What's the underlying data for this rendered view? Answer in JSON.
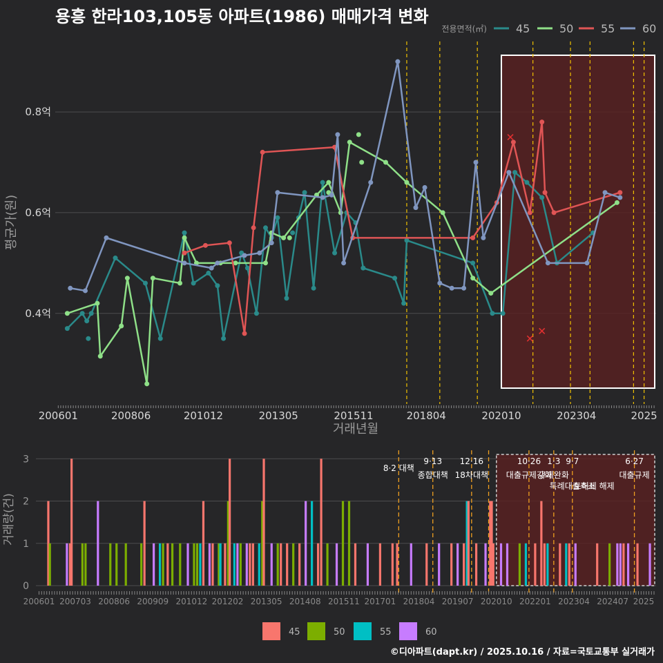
{
  "title": "용흥 한라103,105동 아파트(1986) 매매가격 변화",
  "credit": "©디아파트(dapt.kr) / 2025.10.16 / 자료=국토교통부 실거래가",
  "colors": {
    "bg": "#262628",
    "grid": "#4c4c4e",
    "policy": "#f2c200",
    "highlight": "#5a2020"
  },
  "chart_data": [
    {
      "type": "line",
      "title": "용흥 한라103,105동 아파트(1986) 매매가격 변화",
      "xlabel": "거래년월",
      "ylabel": "평균가(원)",
      "yticks": [
        {
          "v": 0.4,
          "label": "0.4억"
        },
        {
          "v": 0.6,
          "label": "0.6억"
        },
        {
          "v": 0.8,
          "label": "0.8억"
        }
      ],
      "ylim": [
        0.22,
        0.94
      ],
      "xlim": [
        2005.9,
        2025.9
      ],
      "xticks": [
        {
          "v": 2006.0,
          "label": "200601"
        },
        {
          "v": 2008.42,
          "label": "200806"
        },
        {
          "v": 2010.83,
          "label": "201012"
        },
        {
          "v": 2013.33,
          "label": "201305"
        },
        {
          "v": 2015.83,
          "label": "201511"
        },
        {
          "v": 2018.25,
          "label": "201804"
        },
        {
          "v": 2020.75,
          "label": "202010"
        },
        {
          "v": 2023.25,
          "label": "202304"
        },
        {
          "v": 2025.5,
          "label": "2025"
        }
      ],
      "legend_title": "전용면적(㎡)",
      "policy_lines": [
        2017.6,
        2018.7,
        2019.95,
        2021.8,
        2023.05,
        2023.7,
        2025.15,
        2025.5
      ],
      "highlight_range": [
        2020.75,
        2025.9
      ],
      "series": [
        {
          "name": "45",
          "color": "#2a8a8a",
          "points": [
            [
              2006.3,
              0.37
            ],
            [
              2006.8,
              0.4
            ],
            [
              2006.95,
              0.385
            ],
            [
              2007.1,
              0.4
            ],
            [
              2007.9,
              0.51
            ],
            [
              2008.9,
              0.46
            ],
            [
              2009.4,
              0.35
            ],
            [
              2010.2,
              0.56
            ],
            [
              2010.5,
              0.46
            ],
            [
              2011.0,
              0.48
            ],
            [
              2011.3,
              0.455
            ],
            [
              2011.5,
              0.35
            ],
            [
              2012.1,
              0.52
            ],
            [
              2012.3,
              0.49
            ],
            [
              2012.6,
              0.4
            ],
            [
              2012.9,
              0.57
            ],
            [
              2013.1,
              0.55
            ],
            [
              2013.3,
              0.59
            ],
            [
              2013.6,
              0.43
            ],
            [
              2014.0,
              0.59
            ],
            [
              2014.2,
              0.64
            ],
            [
              2014.5,
              0.45
            ],
            [
              2014.8,
              0.66
            ],
            [
              2015.2,
              0.52
            ],
            [
              2015.6,
              0.6
            ],
            [
              2015.9,
              0.58
            ],
            [
              2016.15,
              0.49
            ],
            [
              2017.2,
              0.47
            ],
            [
              2017.5,
              0.42
            ],
            [
              2017.6,
              0.545
            ],
            [
              2019.8,
              0.5
            ],
            [
              2020.45,
              0.4
            ],
            [
              2020.8,
              0.4
            ],
            [
              2021.2,
              0.68
            ],
            [
              2021.6,
              0.66
            ],
            [
              2022.1,
              0.63
            ],
            [
              2022.6,
              0.5
            ],
            [
              2023.8,
              0.56
            ]
          ],
          "extra": [
            [
              2007.0,
              0.35
            ],
            [
              2013.8,
              0.56
            ]
          ]
        },
        {
          "name": "50",
          "color": "#8fe088",
          "points": [
            [
              2006.3,
              0.4
            ],
            [
              2007.3,
              0.42
            ],
            [
              2007.4,
              0.315
            ],
            [
              2008.1,
              0.375
            ],
            [
              2008.3,
              0.47
            ],
            [
              2008.95,
              0.26
            ],
            [
              2009.15,
              0.47
            ],
            [
              2010.05,
              0.46
            ],
            [
              2010.2,
              0.55
            ],
            [
              2010.6,
              0.5
            ],
            [
              2011.4,
              0.5
            ],
            [
              2011.9,
              0.5
            ],
            [
              2012.9,
              0.5
            ],
            [
              2013.1,
              0.56
            ],
            [
              2013.5,
              0.55
            ],
            [
              2014.6,
              0.635
            ],
            [
              2015.0,
              0.66
            ],
            [
              2015.4,
              0.6
            ],
            [
              2015.7,
              0.74
            ],
            [
              2016.9,
              0.7
            ],
            [
              2017.6,
              0.66
            ],
            [
              2018.8,
              0.6
            ],
            [
              2019.8,
              0.47
            ],
            [
              2020.4,
              0.44
            ],
            [
              2024.6,
              0.62
            ]
          ],
          "extra": [
            [
              2016.0,
              0.755
            ],
            [
              2016.1,
              0.7
            ],
            [
              2015.0,
              0.64
            ],
            [
              2013.7,
              0.55
            ]
          ]
        },
        {
          "name": "55",
          "color": "#e05555",
          "points": [
            [
              2010.2,
              0.52
            ],
            [
              2010.9,
              0.535
            ],
            [
              2011.7,
              0.54
            ],
            [
              2012.2,
              0.36
            ],
            [
              2012.5,
              0.57
            ],
            [
              2012.8,
              0.72
            ],
            [
              2015.2,
              0.73
            ],
            [
              2015.8,
              0.55
            ],
            [
              2019.8,
              0.55
            ],
            [
              2020.6,
              0.62
            ],
            [
              2021.15,
              0.74
            ],
            [
              2021.7,
              0.6
            ],
            [
              2022.1,
              0.78
            ],
            [
              2022.2,
              0.64
            ],
            [
              2022.5,
              0.6
            ],
            [
              2024.7,
              0.64
            ]
          ],
          "extra": [],
          "crosses": [
            [
              2021.05,
              0.75
            ],
            [
              2021.7,
              0.35
            ],
            [
              2022.1,
              0.365
            ]
          ]
        },
        {
          "name": "60",
          "color": "#8096c0",
          "points": [
            [
              2006.4,
              0.45
            ],
            [
              2006.9,
              0.445
            ],
            [
              2007.6,
              0.55
            ],
            [
              2010.2,
              0.5
            ],
            [
              2011.1,
              0.49
            ],
            [
              2011.3,
              0.5
            ],
            [
              2012.2,
              0.515
            ],
            [
              2012.7,
              0.52
            ],
            [
              2013.1,
              0.54
            ],
            [
              2013.3,
              0.64
            ],
            [
              2014.8,
              0.63
            ],
            [
              2015.1,
              0.635
            ],
            [
              2015.3,
              0.755
            ],
            [
              2015.5,
              0.5
            ],
            [
              2016.4,
              0.66
            ],
            [
              2017.3,
              0.9
            ],
            [
              2017.9,
              0.61
            ],
            [
              2018.2,
              0.65
            ],
            [
              2018.7,
              0.46
            ],
            [
              2019.1,
              0.45
            ],
            [
              2019.5,
              0.45
            ],
            [
              2019.9,
              0.7
            ],
            [
              2020.15,
              0.55
            ],
            [
              2021.0,
              0.68
            ],
            [
              2022.3,
              0.5
            ],
            [
              2023.6,
              0.5
            ],
            [
              2024.2,
              0.64
            ],
            [
              2024.7,
              0.63
            ]
          ],
          "extra": []
        }
      ]
    },
    {
      "type": "bar",
      "ylabel": "거래량(건)",
      "yticks": [
        0,
        1,
        2,
        3
      ],
      "ylim": [
        0,
        3.2
      ],
      "xticks": [
        {
          "v": 2006.0,
          "label": "200601"
        },
        {
          "v": 2007.17,
          "label": "200703"
        },
        {
          "v": 2008.42,
          "label": "200806"
        },
        {
          "v": 2009.67,
          "label": "200909"
        },
        {
          "v": 2010.92,
          "label": "201012"
        },
        {
          "v": 2012.08,
          "label": "201202"
        },
        {
          "v": 2013.33,
          "label": "201305"
        },
        {
          "v": 2014.58,
          "label": "201408"
        },
        {
          "v": 2015.83,
          "label": "201511"
        },
        {
          "v": 2017.0,
          "label": "201701"
        },
        {
          "v": 2018.25,
          "label": "201804"
        },
        {
          "v": 2019.5,
          "label": "201907"
        },
        {
          "v": 2020.75,
          "label": "202010"
        },
        {
          "v": 2022.0,
          "label": "202201"
        },
        {
          "v": 2023.25,
          "label": "202304"
        },
        {
          "v": 2024.5,
          "label": "202407"
        },
        {
          "v": 2025.5,
          "label": "2025"
        }
      ],
      "legend": [
        "45",
        "50",
        "55",
        "60"
      ],
      "series_colors": {
        "45": "#f8766d",
        "50": "#7cae00",
        "55": "#00bfc4",
        "60": "#c77cff"
      },
      "policy_lines": [
        2017.6,
        2018.7,
        2019.95,
        2020.5,
        2021.8,
        2022.6,
        2023.2,
        2025.2
      ],
      "highlight_range": [
        2020.75,
        2025.9
      ],
      "annotations": [
        {
          "x": 2017.6,
          "line1": "",
          "line2": "8·2 대책",
          "row": 0
        },
        {
          "x": 2018.7,
          "line1": "9·13",
          "line2": "종합대책",
          "row": 1
        },
        {
          "x": 2019.95,
          "line1": "12·16",
          "line2": "18차대책",
          "row": 1
        },
        {
          "x": 2021.8,
          "line1": "10·26",
          "line2": "대출규제강화",
          "row": 1
        },
        {
          "x": 2022.6,
          "line1": "1·3",
          "line2": "규제완화",
          "row": 1
        },
        {
          "x": 2023.2,
          "line1": "9·7",
          "line2": "특례대출축소",
          "row": 2
        },
        {
          "x": 2023.9,
          "line1": "",
          "line2": "토허제 해제",
          "row": 3
        },
        {
          "x": 2025.2,
          "line1": "6·27",
          "line2": "대출규제",
          "row": 1
        }
      ],
      "bars": [
        [
          2006.3,
          "45",
          2
        ],
        [
          2006.35,
          "50",
          1
        ],
        [
          2006.9,
          "60",
          1
        ],
        [
          2007.0,
          "45",
          1
        ],
        [
          2007.05,
          "45",
          3
        ],
        [
          2007.4,
          "50",
          1
        ],
        [
          2007.5,
          "50",
          1
        ],
        [
          2007.9,
          "60",
          2
        ],
        [
          2008.3,
          "50",
          1
        ],
        [
          2008.5,
          "50",
          1
        ],
        [
          2008.8,
          "50",
          1
        ],
        [
          2009.3,
          "50",
          1
        ],
        [
          2009.4,
          "45",
          2
        ],
        [
          2009.7,
          "60",
          1
        ],
        [
          2009.9,
          "55",
          1
        ],
        [
          2010.0,
          "50",
          1
        ],
        [
          2010.15,
          "45",
          1
        ],
        [
          2010.3,
          "50",
          1
        ],
        [
          2010.55,
          "50",
          1
        ],
        [
          2010.8,
          "60",
          1
        ],
        [
          2011.0,
          "50",
          1
        ],
        [
          2011.1,
          "50",
          1
        ],
        [
          2011.2,
          "55",
          1
        ],
        [
          2011.3,
          "45",
          2
        ],
        [
          2011.5,
          "60",
          1
        ],
        [
          2011.6,
          "45",
          1
        ],
        [
          2011.8,
          "50",
          1
        ],
        [
          2011.85,
          "55",
          1
        ],
        [
          2012.0,
          "45",
          1
        ],
        [
          2012.1,
          "50",
          2
        ],
        [
          2012.15,
          "45",
          3
        ],
        [
          2012.3,
          "55",
          1
        ],
        [
          2012.4,
          "60",
          1
        ],
        [
          2012.5,
          "50",
          1
        ],
        [
          2012.7,
          "60",
          1
        ],
        [
          2012.8,
          "45",
          1
        ],
        [
          2012.9,
          "45",
          1
        ],
        [
          2013.1,
          "55",
          1
        ],
        [
          2013.2,
          "50",
          2
        ],
        [
          2013.25,
          "45",
          3
        ],
        [
          2013.5,
          "60",
          1
        ],
        [
          2013.7,
          "50",
          1
        ],
        [
          2013.8,
          "45",
          1
        ],
        [
          2014.0,
          "45",
          1
        ],
        [
          2014.2,
          "50",
          1
        ],
        [
          2014.4,
          "45",
          1
        ],
        [
          2014.6,
          "60",
          2
        ],
        [
          2014.8,
          "55",
          2
        ],
        [
          2015.0,
          "45",
          1
        ],
        [
          2015.1,
          "45",
          3
        ],
        [
          2015.3,
          "50",
          1
        ],
        [
          2015.6,
          "60",
          1
        ],
        [
          2015.8,
          "50",
          2
        ],
        [
          2016.0,
          "50",
          2
        ],
        [
          2016.2,
          "45",
          1
        ],
        [
          2016.6,
          "60",
          1
        ],
        [
          2017.0,
          "45",
          1
        ],
        [
          2017.4,
          "45",
          1
        ],
        [
          2017.55,
          "45",
          1
        ],
        [
          2018.0,
          "60",
          1
        ],
        [
          2018.5,
          "45",
          1
        ],
        [
          2018.9,
          "60",
          1
        ],
        [
          2019.3,
          "45",
          1
        ],
        [
          2019.5,
          "60",
          1
        ],
        [
          2019.7,
          "45",
          1
        ],
        [
          2019.8,
          "55",
          2
        ],
        [
          2019.85,
          "45",
          2
        ],
        [
          2020.1,
          "45",
          1
        ],
        [
          2020.4,
          "60",
          1
        ],
        [
          2020.55,
          "45",
          2
        ],
        [
          2020.6,
          "45",
          2
        ],
        [
          2020.65,
          "45",
          1
        ],
        [
          2020.9,
          "60",
          1
        ],
        [
          2021.1,
          "60",
          1
        ],
        [
          2021.5,
          "50",
          1
        ],
        [
          2021.7,
          "55",
          1
        ],
        [
          2022.0,
          "45",
          1
        ],
        [
          2022.2,
          "45",
          2
        ],
        [
          2022.3,
          "45",
          1
        ],
        [
          2022.4,
          "55",
          1
        ],
        [
          2022.8,
          "45",
          1
        ],
        [
          2023.0,
          "55",
          1
        ],
        [
          2023.1,
          "45",
          1
        ],
        [
          2023.3,
          "60",
          1
        ],
        [
          2024.0,
          "45",
          1
        ],
        [
          2024.4,
          "50",
          1
        ],
        [
          2024.65,
          "60",
          1
        ],
        [
          2024.75,
          "60",
          1
        ],
        [
          2024.85,
          "45",
          1
        ],
        [
          2025.0,
          "60",
          1
        ],
        [
          2025.3,
          "45",
          1
        ],
        [
          2025.7,
          "60",
          1
        ]
      ]
    }
  ]
}
